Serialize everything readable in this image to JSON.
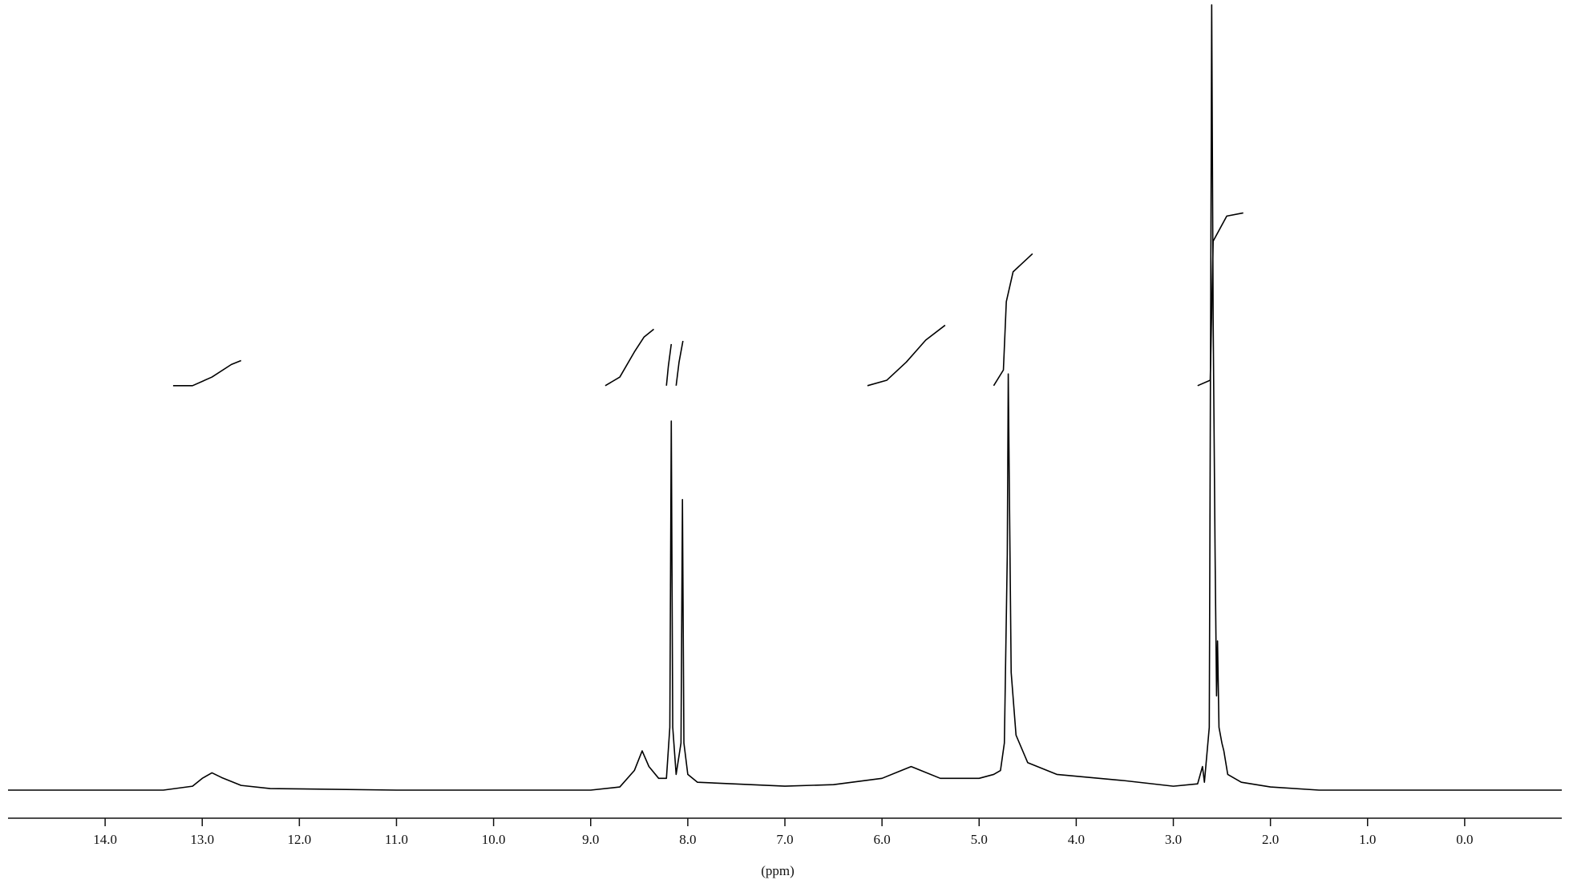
{
  "chart_data": {
    "type": "line",
    "xlabel": "(ppm)",
    "xlim": [
      15,
      -1
    ],
    "ylim": [
      0,
      100
    ],
    "xticks": [
      {
        "value": 14,
        "label": "14.0"
      },
      {
        "value": 13,
        "label": "13.0"
      },
      {
        "value": 12,
        "label": "12.0"
      },
      {
        "value": 11,
        "label": "11.0"
      },
      {
        "value": 10,
        "label": "10.0"
      },
      {
        "value": 9,
        "label": "9.0"
      },
      {
        "value": 8,
        "label": "8.0"
      },
      {
        "value": 7,
        "label": "7.0"
      },
      {
        "value": 6,
        "label": "6.0"
      },
      {
        "value": 5,
        "label": "5.0"
      },
      {
        "value": 4,
        "label": "4.0"
      },
      {
        "value": 3,
        "label": "3.0"
      },
      {
        "value": 2,
        "label": "2.0"
      },
      {
        "value": 1,
        "label": "1.0"
      },
      {
        "value": 0,
        "label": "0.0"
      }
    ],
    "series": [
      {
        "color": "#000000",
        "x": [
          15.0,
          13.4,
          13.1,
          13.0,
          12.9,
          12.8,
          12.6,
          12.3,
          11.0,
          10.0,
          9.0,
          8.7,
          8.55,
          8.47,
          8.4,
          8.3,
          8.22,
          8.185,
          8.17,
          8.155,
          8.12,
          8.07,
          8.055,
          8.04,
          8.0,
          7.9,
          7.0,
          6.5,
          6.0,
          5.8,
          5.7,
          5.6,
          5.4,
          5.0,
          4.85,
          4.78,
          4.74,
          4.71,
          4.7,
          4.69,
          4.67,
          4.62,
          4.5,
          4.2,
          3.5,
          3.0,
          2.75,
          2.7,
          2.68,
          2.63,
          2.605,
          2.59,
          2.57,
          2.555,
          2.545,
          2.53,
          2.5,
          2.48,
          2.44,
          2.3,
          2.0,
          1.5,
          -1.0
        ],
        "values": [
          0,
          0,
          0.5,
          1.5,
          2.2,
          1.6,
          0.6,
          0.2,
          0,
          0,
          0,
          0.4,
          2.5,
          5,
          3,
          1.5,
          1.5,
          8,
          47,
          8,
          2.0,
          6,
          37,
          6,
          2,
          1.0,
          0.5,
          0.7,
          1.5,
          2.5,
          3.0,
          2.5,
          1.5,
          1.5,
          2,
          2.5,
          6,
          30,
          53,
          40,
          15,
          7,
          3.5,
          2,
          1.2,
          0.5,
          0.8,
          3,
          1,
          8,
          100,
          60,
          30,
          12,
          19,
          8,
          6,
          5,
          2,
          1,
          0.4,
          0,
          0
        ]
      },
      {
        "color": "#000000",
        "x": [
          13.3,
          13.1,
          12.9,
          12.7,
          12.6
        ],
        "values": [
          51.5,
          51.5,
          52.6,
          54.2,
          54.7
        ]
      },
      {
        "color": "#000000",
        "x": [
          8.85,
          8.7,
          8.55,
          8.45,
          8.35
        ],
        "values": [
          51.5,
          52.6,
          55.8,
          57.7,
          58.7
        ]
      },
      {
        "color": "#000000",
        "x": [
          8.22,
          8.2,
          8.17
        ],
        "values": [
          51.5,
          54,
          56.8
        ]
      },
      {
        "color": "#000000",
        "x": [
          8.12,
          8.09,
          8.05
        ],
        "values": [
          51.5,
          54.5,
          57.2
        ]
      },
      {
        "color": "#000000",
        "x": [
          6.15,
          5.95,
          5.75,
          5.55,
          5.35
        ],
        "values": [
          51.5,
          52.2,
          54.5,
          57.3,
          59.2
        ]
      },
      {
        "color": "#000000",
        "x": [
          4.85,
          4.75,
          4.72,
          4.65,
          4.45
        ],
        "values": [
          51.5,
          53.5,
          62.2,
          66.0,
          68.3
        ]
      },
      {
        "color": "#000000",
        "x": [
          2.75,
          2.62,
          2.59,
          2.45,
          2.28
        ],
        "values": [
          51.5,
          52.2,
          69.9,
          73.1,
          73.5
        ]
      }
    ]
  }
}
